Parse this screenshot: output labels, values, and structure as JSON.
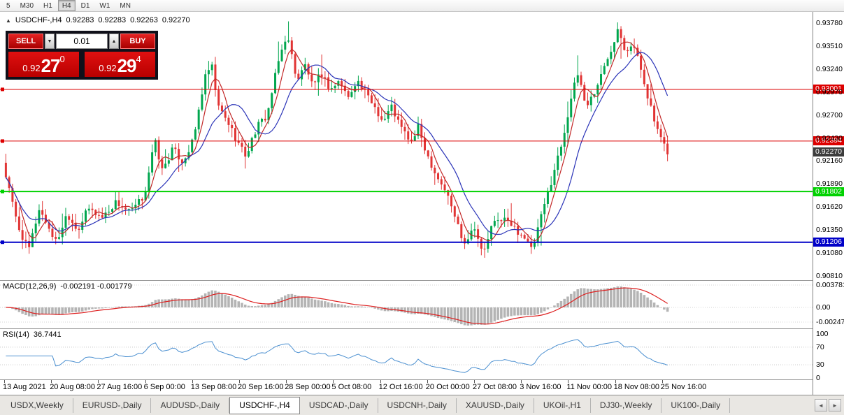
{
  "toolbar": {
    "timeframes": [
      "5",
      "M30",
      "H1",
      "H4",
      "D1",
      "W1",
      "MN"
    ],
    "active_timeframe": "H4"
  },
  "chart_header": {
    "icon": "▲",
    "symbol": "USDCHF-,H4",
    "open": "0.92283",
    "high": "0.92283",
    "low": "0.92263",
    "close": "0.92270"
  },
  "trade_panel": {
    "sell_label": "SELL",
    "buy_label": "BUY",
    "volume": "0.01",
    "spin_down": "▼",
    "spin_up": "▲",
    "sell_price_big": "0.92",
    "sell_price_pips": "27",
    "sell_price_pipette": "0",
    "buy_price_big": "0.92",
    "buy_price_pips": "29",
    "buy_price_pipette": "4"
  },
  "price_axis_labels": [
    "0.93780",
    "0.93510",
    "0.93240",
    "0.92970",
    "0.92700",
    "0.92430",
    "0.92160",
    "0.91890",
    "0.91620",
    "0.91350",
    "0.91080",
    "0.90810"
  ],
  "time_axis_labels": [
    "13 Aug 2021",
    "20 Aug 08:00",
    "27 Aug 16:00",
    "6 Sep 00:00",
    "13 Sep 08:00",
    "20 Sep 16:00",
    "28 Sep 00:00",
    "5 Oct 08:00",
    "12 Oct 16:00",
    "20 Oct 00:00",
    "27 Oct 08:00",
    "3 Nov 16:00",
    "11 Nov 00:00",
    "18 Nov 08:00",
    "25 Nov 16:00"
  ],
  "macd_panel": {
    "title": "MACD(12,26,9)",
    "values": "-0.002191 -0.001779",
    "axis_labels": [
      "0.003781",
      "0.00",
      "-0.002476"
    ]
  },
  "rsi_panel": {
    "title": "RSI(14)",
    "value": "36.7441",
    "axis_labels": [
      "100",
      "70",
      "30",
      "0"
    ]
  },
  "tabs": [
    "USDX,Weekly",
    "EURUSD-,Daily",
    "AUDUSD-,Daily",
    "USDCHF-,H4",
    "USDCAD-,Daily",
    "USDCNH-,Daily",
    "XAUUSD-,Daily",
    "UKOil-,H1",
    "DJ30-,Weekly",
    "UK100-,Daily"
  ],
  "active_tab": "USDCHF-,H4",
  "tab_scroll": {
    "left": "◄",
    "right": "►"
  },
  "chart_data": {
    "type": "candlestick",
    "symbol": "USDCHF",
    "timeframe": "H4",
    "current_ohlc": {
      "open": 0.92283,
      "high": 0.92283,
      "low": 0.92263,
      "close": 0.9227
    },
    "y_axis_range": [
      0.90761,
      0.93911
    ],
    "y_axis_ticks": [
      0.9378,
      0.9351,
      0.9324,
      0.9297,
      0.927,
      0.9243,
      0.9216,
      0.9189,
      0.9162,
      0.9135,
      0.9108,
      0.9081
    ],
    "price_levels": [
      {
        "value": 0.93001,
        "label": "0.93001",
        "color": "#dd0000",
        "width": 1
      },
      {
        "value": 0.92394,
        "label": "0.92394",
        "color": "#dd0000",
        "width": 1
      },
      {
        "value": 0.91802,
        "label": "0.91802",
        "color": "#00d200",
        "width": 2
      },
      {
        "value": 0.91206,
        "label": "0.91206",
        "color": "#0000c8",
        "width": 2
      }
    ],
    "current_price_badge": {
      "value": 0.9227,
      "label": "0.92270",
      "color": "#3c3c3c"
    },
    "indicators": {
      "macd": {
        "fast": 12,
        "slow": 26,
        "signal": 9,
        "current_values": [
          -0.002191,
          -0.001779
        ]
      },
      "rsi": {
        "period": 14,
        "current_value": 36.7441,
        "levels": [
          70,
          30
        ]
      },
      "moving_averages": [
        {
          "period": 5,
          "color_key": "ma_fast"
        },
        {
          "period": 13,
          "color_key": "ma_slow"
        }
      ]
    },
    "colors": {
      "up": "#00a64e",
      "down": "#e13434",
      "ma_fast": "#c22828",
      "ma_slow": "#2b34b8",
      "macd_hist": "#b4b4b4",
      "macd_signal": "#dd2020",
      "rsi_line": "#4a8fd0",
      "level_red": "#dd0000",
      "level_green": "#00d200",
      "level_blue": "#0000c8"
    },
    "candle_count": 200,
    "price_path": [
      [
        0,
        0.9215
      ],
      [
        0.012,
        0.9175
      ],
      [
        0.023,
        0.914
      ],
      [
        0.039,
        0.911
      ],
      [
        0.055,
        0.916
      ],
      [
        0.065,
        0.9145
      ],
      [
        0.081,
        0.912
      ],
      [
        0.097,
        0.9155
      ],
      [
        0.113,
        0.9135
      ],
      [
        0.129,
        0.916
      ],
      [
        0.15,
        0.915
      ],
      [
        0.171,
        0.9168
      ],
      [
        0.192,
        0.9155
      ],
      [
        0.213,
        0.9175
      ],
      [
        0.229,
        0.924
      ],
      [
        0.24,
        0.9205
      ],
      [
        0.256,
        0.923
      ],
      [
        0.271,
        0.9215
      ],
      [
        0.287,
        0.924
      ],
      [
        0.303,
        0.931
      ],
      [
        0.314,
        0.933
      ],
      [
        0.324,
        0.928
      ],
      [
        0.34,
        0.926
      ],
      [
        0.356,
        0.9235
      ],
      [
        0.366,
        0.9222
      ],
      [
        0.382,
        0.9255
      ],
      [
        0.398,
        0.927
      ],
      [
        0.414,
        0.933
      ],
      [
        0.427,
        0.9365
      ],
      [
        0.435,
        0.934
      ],
      [
        0.443,
        0.931
      ],
      [
        0.456,
        0.933
      ],
      [
        0.467,
        0.93
      ],
      [
        0.479,
        0.932
      ],
      [
        0.493,
        0.93
      ],
      [
        0.507,
        0.931
      ],
      [
        0.52,
        0.929
      ],
      [
        0.532,
        0.9312
      ],
      [
        0.546,
        0.9295
      ],
      [
        0.56,
        0.928
      ],
      [
        0.572,
        0.9262
      ],
      [
        0.585,
        0.928
      ],
      [
        0.599,
        0.9255
      ],
      [
        0.615,
        0.9238
      ],
      [
        0.625,
        0.9255
      ],
      [
        0.638,
        0.9225
      ],
      [
        0.652,
        0.92
      ],
      [
        0.667,
        0.918
      ],
      [
        0.683,
        0.9145
      ],
      [
        0.694,
        0.912
      ],
      [
        0.71,
        0.914
      ],
      [
        0.722,
        0.9105
      ],
      [
        0.736,
        0.914
      ],
      [
        0.752,
        0.915
      ],
      [
        0.768,
        0.9138
      ],
      [
        0.784,
        0.9128
      ],
      [
        0.796,
        0.911
      ],
      [
        0.81,
        0.915
      ],
      [
        0.826,
        0.9195
      ],
      [
        0.842,
        0.924
      ],
      [
        0.855,
        0.929
      ],
      [
        0.866,
        0.932
      ],
      [
        0.877,
        0.928
      ],
      [
        0.889,
        0.9295
      ],
      [
        0.902,
        0.932
      ],
      [
        0.916,
        0.935
      ],
      [
        0.926,
        0.9375
      ],
      [
        0.937,
        0.9345
      ],
      [
        0.947,
        0.9355
      ],
      [
        0.958,
        0.933
      ],
      [
        0.968,
        0.93
      ],
      [
        0.979,
        0.9265
      ],
      [
        0.99,
        0.924
      ],
      [
        1,
        0.9227
      ]
    ]
  }
}
